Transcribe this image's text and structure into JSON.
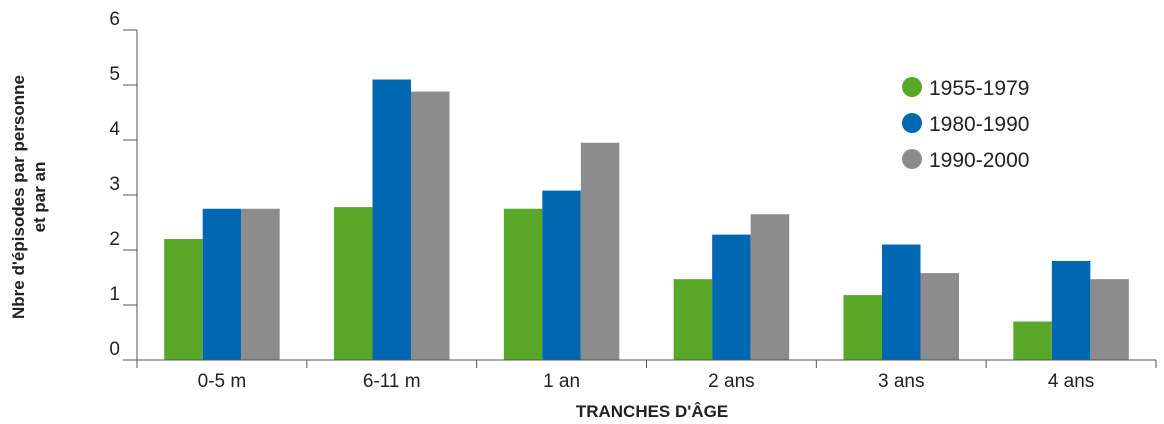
{
  "chart_data": {
    "type": "bar",
    "title": "",
    "xlabel": "TRANCHES D'ÂGE",
    "ylabel_lines": [
      "Nbre d'épisodes par personne",
      "et par an"
    ],
    "ylim": [
      0,
      6
    ],
    "yticks": [
      0,
      1,
      2,
      3,
      4,
      5,
      6
    ],
    "grid": false,
    "legend_position": "top-right",
    "categories": [
      "0-5 m",
      "6-11 m",
      "1 an",
      "2 ans",
      "3 ans",
      "4 ans"
    ],
    "series": [
      {
        "name": "1955-1979",
        "color": "#5aa82a",
        "values": [
          2.2,
          2.78,
          2.75,
          1.47,
          1.18,
          0.7
        ]
      },
      {
        "name": "1980-1990",
        "color": "#0068b3",
        "values": [
          2.75,
          5.1,
          3.08,
          2.28,
          2.1,
          1.8
        ]
      },
      {
        "name": "1990-2000",
        "color": "#8c8c8c",
        "values": [
          2.75,
          4.88,
          3.95,
          2.65,
          1.58,
          1.47
        ]
      }
    ]
  }
}
